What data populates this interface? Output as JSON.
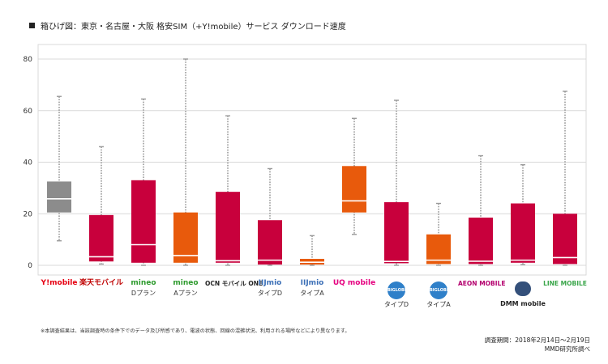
{
  "title": "箱ひげ図：東京・名古屋・大阪 格安SIM（+Y!mobile）サービス ダウンロード速度",
  "footnote": "※本調査結果は、当該調査時の条件下でのデータ及び所感であり、電波の状態、回線の混雑状況、利用される場所などにより異なります。",
  "period": "調査期間：2018年2月14日～2月19日",
  "source": "MMD研究所調べ",
  "chart_data": {
    "type": "boxplot",
    "ylim": [
      0,
      82
    ],
    "yticks": [
      0,
      20,
      40,
      60,
      80
    ],
    "grid": true,
    "series": [
      {
        "label_main": "Y!mobile",
        "label_sub": "",
        "color": "#8c8c8c",
        "text_color": "#e60012",
        "min": 9.5,
        "q1": 20.5,
        "median": 25.8,
        "q3": 32.5,
        "max": 65.5
      },
      {
        "label_main": "楽天モバイル",
        "label_sub": "",
        "color": "#c8003c",
        "text_color": "#bf0000",
        "min": 0.5,
        "q1": 1.5,
        "median": 3.3,
        "q3": 19.5,
        "max": 46
      },
      {
        "label_main": "mineo",
        "label_sub": "Dプラン",
        "color": "#c8003c",
        "text_color": "#2e9b2e",
        "min": 0,
        "q1": 1,
        "median": 8,
        "q3": 33,
        "max": 64.5
      },
      {
        "label_main": "mineo",
        "label_sub": "Aプラン",
        "color": "#e85a0c",
        "text_color": "#2e9b2e",
        "min": 0,
        "q1": 1,
        "median": 3.8,
        "q3": 20.5,
        "max": 80
      },
      {
        "label_main": "OCN モバイル ONE",
        "label_sub": "",
        "color": "#c8003c",
        "text_color": "#222222",
        "min": 0,
        "q1": 1,
        "median": 1.8,
        "q3": 28.5,
        "max": 58
      },
      {
        "label_main": "IIJmio",
        "label_sub": "タイプD",
        "color": "#c8003c",
        "text_color": "#3b6fb6",
        "min": 0,
        "q1": 0.3,
        "median": 2,
        "q3": 17.5,
        "max": 37.5
      },
      {
        "label_main": "IIJmio",
        "label_sub": "タイプA",
        "color": "#e85a0c",
        "text_color": "#3b6fb6",
        "min": 0,
        "q1": 0.3,
        "median": 1.2,
        "q3": 2.5,
        "max": 11.5
      },
      {
        "label_main": "UQ mobile",
        "label_sub": "",
        "color": "#e85a0c",
        "text_color": "#e5007f",
        "min": 12,
        "q1": 20.5,
        "median": 25,
        "q3": 38.5,
        "max": 57
      },
      {
        "label_main": "BIGLOBE mobile",
        "label_sub": "タイプD",
        "color": "#c8003c",
        "text_color": "#2f80c9",
        "min": 0,
        "q1": 0.8,
        "median": 1.5,
        "q3": 24.5,
        "max": 64
      },
      {
        "label_main": "BIGLOBE mobile",
        "label_sub": "タイプA",
        "color": "#e85a0c",
        "text_color": "#2f80c9",
        "min": 0,
        "q1": 0.5,
        "median": 2,
        "q3": 12,
        "max": 24
      },
      {
        "label_main": "AEON MOBILE",
        "label_sub": "",
        "color": "#c8003c",
        "text_color": "#b4006e",
        "min": 0,
        "q1": 0.5,
        "median": 1.6,
        "q3": 18.5,
        "max": 42.5
      },
      {
        "label_main": "DMM mobile",
        "label_sub": "",
        "color": "#c8003c",
        "text_color": "#222222",
        "min": 0.3,
        "q1": 1,
        "median": 2,
        "q3": 24,
        "max": 39
      },
      {
        "label_main": "LINE MOBILE",
        "label_sub": "",
        "color": "#c8003c",
        "text_color": "#3aa64a",
        "min": 0,
        "q1": 0.5,
        "median": 3,
        "q3": 20,
        "max": 67.5
      }
    ]
  }
}
